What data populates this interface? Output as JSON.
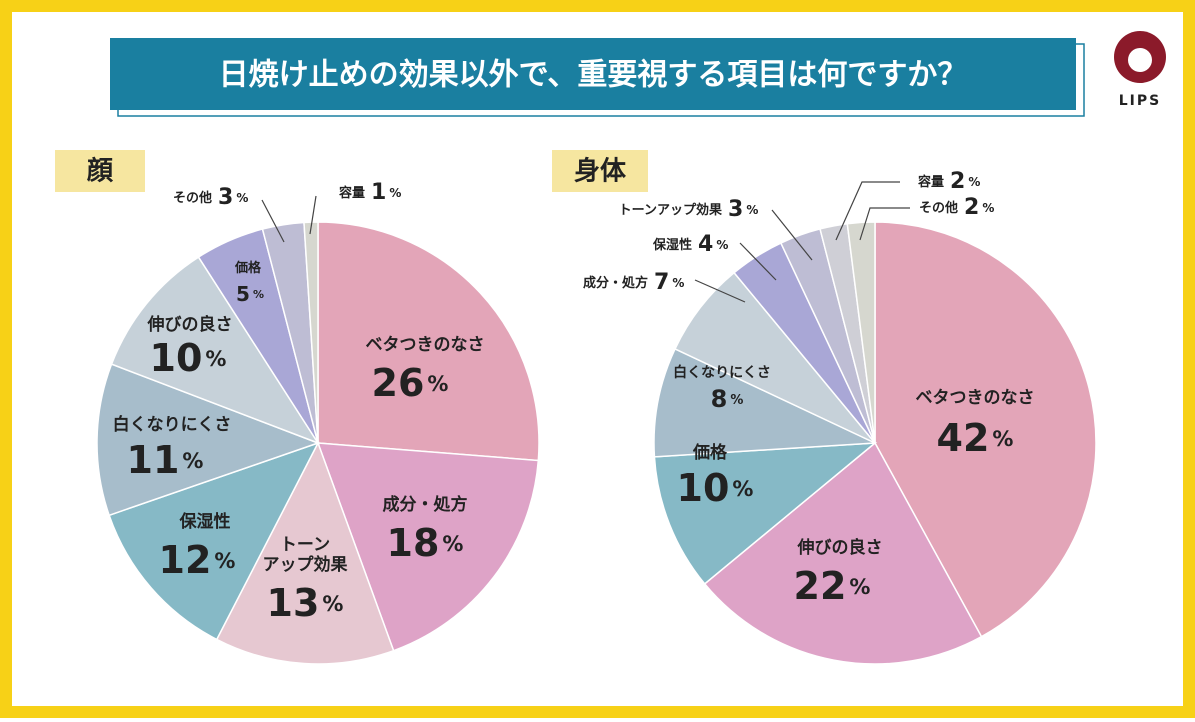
{
  "title": "日焼け止めの効果以外で、重要視する項目は何ですか？",
  "logo": "LIPS",
  "chart_data": [
    {
      "type": "pie",
      "title": "顔",
      "categories": [
        "ベタつきのなさ",
        "成分・処方",
        "トーン\nアップ効果",
        "保湿性",
        "白くなりにくさ",
        "伸びの良さ",
        "価格",
        "その他",
        "容量"
      ],
      "values": [
        26,
        18,
        13,
        12,
        11,
        10,
        5,
        3,
        1
      ],
      "value_labels": [
        "26%",
        "18%",
        "13%",
        "12%",
        "11%",
        "10%",
        "5%",
        "3%",
        "1%"
      ],
      "colors": [
        "#e3a5b8",
        "#dea3c7",
        "#e6c8d1",
        "#86b9c6",
        "#a7bdcb",
        "#c6d1d9",
        "#a9a7d6",
        "#bebdd4",
        "#d6d7cf"
      ]
    },
    {
      "type": "pie",
      "title": "身体",
      "categories": [
        "ベタつきのなさ",
        "伸びの良さ",
        "価格",
        "白くなりにくさ",
        "成分・処方",
        "保湿性",
        "トーンアップ効果",
        "容量",
        "その他"
      ],
      "values": [
        42,
        22,
        10,
        8,
        7,
        4,
        3,
        2,
        2
      ],
      "value_labels": [
        "42%",
        "22%",
        "10%",
        "8%",
        "7%",
        "4%",
        "3%",
        "2%",
        "2%"
      ],
      "colors": [
        "#e3a5b8",
        "#dea3c7",
        "#86b9c6",
        "#a7bdcb",
        "#c6d1d9",
        "#a9a7d6",
        "#bebdd4",
        "#cfcfd6",
        "#d6d7cf"
      ]
    }
  ]
}
